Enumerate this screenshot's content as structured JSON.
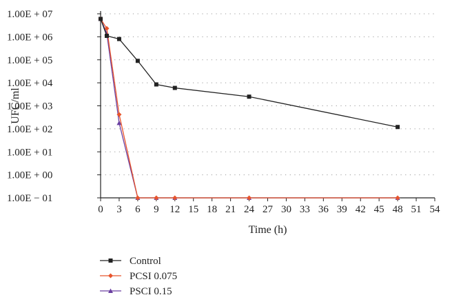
{
  "chart_data": {
    "type": "line",
    "xlabel": "Time (h)",
    "ylabel": "UFC/ml",
    "xlim": [
      0,
      54
    ],
    "x_ticks": [
      0,
      3,
      6,
      9,
      12,
      15,
      18,
      21,
      24,
      27,
      30,
      33,
      36,
      39,
      42,
      45,
      48,
      51,
      54
    ],
    "y_scale": "log",
    "ylim": [
      0.1,
      10000000
    ],
    "y_ticks": [
      {
        "value": 10000000,
        "label": "1.00E + 07"
      },
      {
        "value": 1000000,
        "label": "1.00E + 06"
      },
      {
        "value": 100000,
        "label": "1.00E + 05"
      },
      {
        "value": 10000,
        "label": "1.00E + 04"
      },
      {
        "value": 1000,
        "label": "1.00E + 03"
      },
      {
        "value": 100,
        "label": "1.00E + 02"
      },
      {
        "value": 10,
        "label": "1.00E + 01"
      },
      {
        "value": 1,
        "label": "1.00E + 00"
      },
      {
        "value": 0.1,
        "label": "1.00E − 01"
      }
    ],
    "grid": "horizontal-dotted",
    "legend_position": "bottom-left",
    "series": [
      {
        "name": "Control",
        "color": "#222222",
        "marker": "square",
        "x": [
          0,
          1,
          3,
          6,
          9,
          12,
          24,
          48
        ],
        "y": [
          6000000,
          1100000,
          800000,
          90000,
          8500,
          6000,
          2500,
          120
        ]
      },
      {
        "name": "PCSI 0.075",
        "color": "#e8542c",
        "marker": "diamond",
        "x": [
          0,
          1,
          3,
          6,
          9,
          12,
          24,
          48
        ],
        "y": [
          6000000,
          2300000,
          420,
          0.1,
          0.1,
          0.1,
          0.1,
          0.1
        ]
      },
      {
        "name": "PSCI 0.15",
        "color": "#6a3fa0",
        "marker": "triangle",
        "x": [
          0,
          1,
          3,
          6,
          9,
          12,
          24,
          48
        ],
        "y": [
          6000000,
          1400000,
          180,
          0.1,
          0.1,
          0.1,
          0.1,
          0.1
        ]
      }
    ]
  }
}
